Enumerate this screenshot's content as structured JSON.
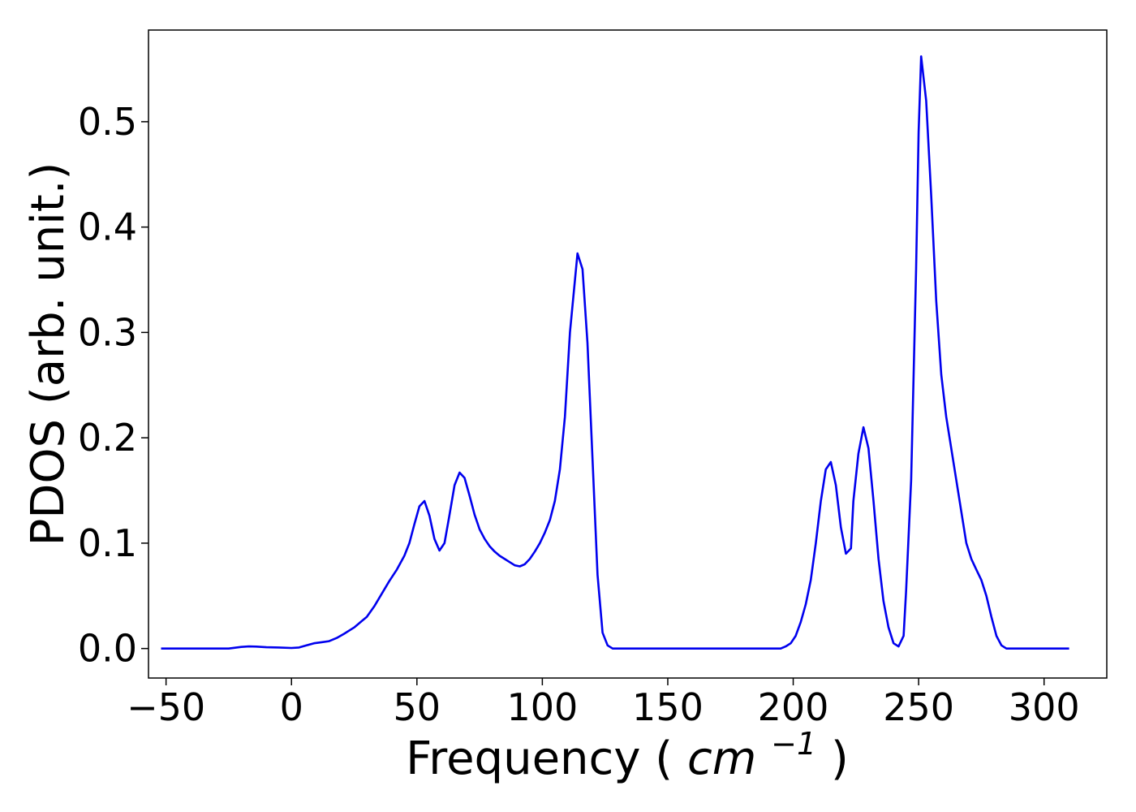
{
  "chart_data": {
    "type": "line",
    "xlabel": "Frequency",
    "xlabel_unit_base": "cm",
    "xlabel_unit_exp": "−1",
    "ylabel": "PDOS (arb. unit.)",
    "xlim": [
      -57,
      325
    ],
    "ylim": [
      -0.028,
      0.587
    ],
    "x_ticks": [
      -50,
      0,
      50,
      100,
      150,
      200,
      250,
      300
    ],
    "x_tick_labels": [
      "−50",
      "0",
      "50",
      "100",
      "150",
      "200",
      "250",
      "300"
    ],
    "y_ticks": [
      0.0,
      0.1,
      0.2,
      0.3,
      0.4,
      0.5
    ],
    "y_tick_labels": [
      "0.0",
      "0.1",
      "0.2",
      "0.3",
      "0.4",
      "0.5"
    ],
    "grid": false,
    "legend": "none",
    "series": [
      {
        "color": "#0000ee",
        "x": [
          -52,
          -40,
          -30,
          -25,
          -20,
          -17,
          -14,
          -10,
          -5,
          0,
          3,
          6,
          9,
          12,
          15,
          18,
          21,
          25,
          28,
          30,
          33,
          36,
          39,
          42,
          45,
          47,
          49,
          51,
          53,
          55,
          57,
          59,
          61,
          63,
          65,
          67,
          69,
          71,
          73,
          75,
          77,
          79,
          81,
          83,
          85,
          87,
          89,
          91,
          93,
          95,
          97,
          99,
          101,
          103,
          105,
          107,
          109,
          111,
          113,
          114,
          116,
          118,
          120,
          122,
          124,
          126,
          128,
          130,
          140,
          160,
          180,
          195,
          197,
          199,
          201,
          203,
          205,
          207,
          209,
          211,
          213,
          215,
          217,
          219,
          221,
          223,
          224,
          226,
          228,
          230,
          232,
          234,
          236,
          238,
          240,
          242,
          244,
          245,
          247,
          249,
          250,
          251,
          253,
          255,
          257,
          259,
          261,
          263,
          265,
          267,
          269,
          271,
          273,
          275,
          277,
          279,
          281,
          283,
          285,
          287,
          290,
          300,
          310
        ],
        "y": [
          0.0,
          0.0,
          0.0,
          0.0,
          0.0015,
          0.002,
          0.0018,
          0.0012,
          0.001,
          0.0005,
          0.001,
          0.003,
          0.005,
          0.006,
          0.007,
          0.01,
          0.014,
          0.02,
          0.026,
          0.03,
          0.04,
          0.052,
          0.064,
          0.075,
          0.088,
          0.1,
          0.118,
          0.135,
          0.14,
          0.126,
          0.104,
          0.093,
          0.1,
          0.127,
          0.155,
          0.167,
          0.162,
          0.145,
          0.127,
          0.113,
          0.104,
          0.097,
          0.092,
          0.088,
          0.085,
          0.082,
          0.079,
          0.078,
          0.08,
          0.085,
          0.092,
          0.1,
          0.11,
          0.122,
          0.14,
          0.17,
          0.22,
          0.3,
          0.35,
          0.375,
          0.36,
          0.29,
          0.18,
          0.07,
          0.015,
          0.003,
          0.0,
          0.0,
          0.0,
          0.0,
          0.0,
          0.0,
          0.002,
          0.005,
          0.012,
          0.025,
          0.042,
          0.065,
          0.1,
          0.14,
          0.17,
          0.177,
          0.155,
          0.115,
          0.09,
          0.095,
          0.14,
          0.185,
          0.21,
          0.19,
          0.14,
          0.085,
          0.045,
          0.02,
          0.005,
          0.002,
          0.012,
          0.055,
          0.16,
          0.36,
          0.49,
          0.562,
          0.52,
          0.43,
          0.33,
          0.26,
          0.22,
          0.19,
          0.16,
          0.13,
          0.1,
          0.085,
          0.075,
          0.065,
          0.05,
          0.03,
          0.012,
          0.003,
          0.0,
          0.0,
          0.0,
          0.0,
          0.0
        ]
      }
    ]
  }
}
